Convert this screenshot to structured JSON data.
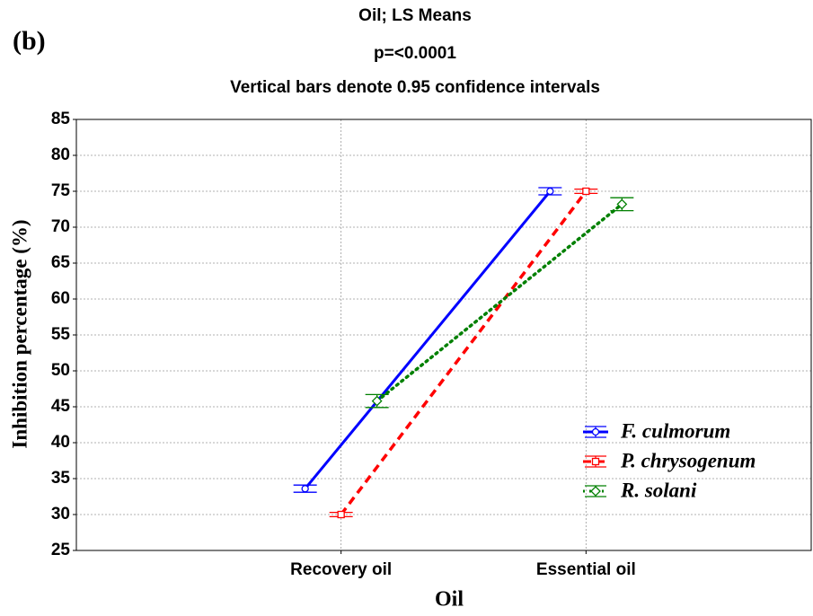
{
  "panel_label": "(b)",
  "chart_data": {
    "type": "line",
    "title": "Oil; LS Means",
    "subtitle": "p=<0.0001",
    "annotation": "Vertical bars denote 0.95 confidence intervals",
    "x_label": "Oil",
    "y_label": "Inhibition percentage (%)",
    "categories": [
      "Recovery oil",
      "Essential oil"
    ],
    "series": [
      {
        "name": "F. culmorum",
        "color": "#0000ff",
        "marker": "circle",
        "dash": "solid",
        "values": [
          33.6,
          75.0
        ],
        "errors": [
          0.5,
          0.5
        ]
      },
      {
        "name": "P. chrysogenum",
        "color": "#ff0000",
        "marker": "square",
        "dash": "dashed",
        "values": [
          30.0,
          75.0
        ],
        "errors": [
          0.3,
          0.3
        ]
      },
      {
        "name": "R. solani",
        "color": "#008000",
        "marker": "diamond",
        "dash": "dotted",
        "values": [
          45.8,
          73.2
        ],
        "errors": [
          0.9,
          0.9
        ]
      }
    ],
    "ylim": [
      25,
      85
    ],
    "yticks": [
      25,
      30,
      35,
      40,
      45,
      50,
      55,
      60,
      65,
      70,
      75,
      80,
      85
    ],
    "grid": true,
    "legend": "lower right"
  }
}
